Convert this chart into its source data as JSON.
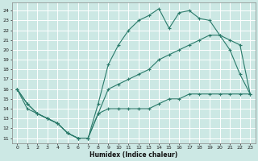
{
  "xlabel": "Humidex (Indice chaleur)",
  "bg_color": "#cce8e4",
  "grid_color": "#b0d8d2",
  "line_color": "#2a7a6a",
  "line1_x": [
    0,
    1,
    2,
    3,
    4,
    5,
    6,
    7,
    8,
    9,
    10,
    11,
    12,
    13,
    14,
    15,
    16,
    17,
    18,
    19,
    20,
    21,
    22,
    23
  ],
  "line1_y": [
    16,
    14.5,
    13.5,
    13,
    12.5,
    11.5,
    11,
    11,
    14.5,
    18.5,
    20.5,
    22,
    23,
    23.5,
    24.2,
    22.2,
    23.8,
    24,
    23.2,
    23,
    21.5,
    20,
    17.5,
    15.5
  ],
  "line2_x": [
    0,
    1,
    2,
    3,
    4,
    5,
    6,
    7,
    8,
    9,
    10,
    11,
    12,
    13,
    14,
    15,
    16,
    17,
    18,
    19,
    20,
    21,
    22,
    23
  ],
  "line2_y": [
    16,
    14.5,
    13.5,
    13,
    12.5,
    11.5,
    11,
    11,
    13.5,
    16,
    16.5,
    17,
    17.5,
    18,
    19,
    19.5,
    20,
    20.5,
    21,
    21.5,
    21.5,
    21,
    20.5,
    15.5
  ],
  "line3_x": [
    0,
    1,
    2,
    3,
    4,
    5,
    6,
    7,
    8,
    9,
    10,
    11,
    12,
    13,
    14,
    15,
    16,
    17,
    18,
    19,
    20,
    21,
    22,
    23
  ],
  "line3_y": [
    16,
    14,
    13.5,
    13,
    12.5,
    11.5,
    11,
    11,
    13.5,
    14,
    14,
    14,
    14,
    14,
    14.5,
    15,
    15,
    15.5,
    15.5,
    15.5,
    15.5,
    15.5,
    15.5,
    15.5
  ],
  "xlim": [
    -0.5,
    23.5
  ],
  "ylim": [
    10.5,
    24.8
  ],
  "yticks": [
    11,
    12,
    13,
    14,
    15,
    16,
    17,
    18,
    19,
    20,
    21,
    22,
    23,
    24
  ],
  "xticks": [
    0,
    1,
    2,
    3,
    4,
    5,
    6,
    7,
    8,
    9,
    10,
    11,
    12,
    13,
    14,
    15,
    16,
    17,
    18,
    19,
    20,
    21,
    22,
    23
  ]
}
